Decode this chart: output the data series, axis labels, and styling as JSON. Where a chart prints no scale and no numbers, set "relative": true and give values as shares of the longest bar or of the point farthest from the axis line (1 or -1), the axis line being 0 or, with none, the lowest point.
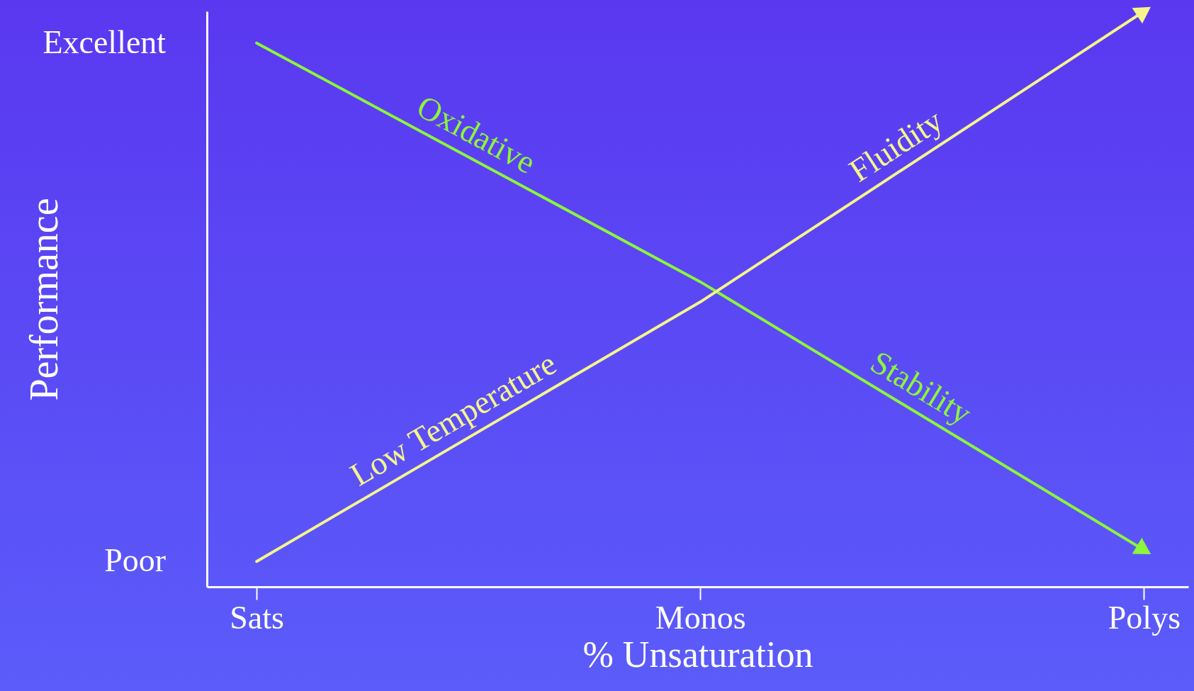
{
  "chart_data": {
    "type": "line",
    "relative": true,
    "xlabel": "% Unsaturation",
    "ylabel": "Performance",
    "categories": [
      "Sats",
      "Monos",
      "Polys"
    ],
    "series": [
      {
        "name": "Oxidative Stability",
        "color": "#8cf53c",
        "values": [
          0.945,
          0.53,
          0.064
        ]
      },
      {
        "name": "Low Temperature Fluidity",
        "color": "#f5f58c",
        "values": [
          0.044,
          0.495,
          1
        ]
      }
    ],
    "annotations": [
      {
        "text": "Excellent",
        "x": "Sats",
        "y": 0.945
      },
      {
        "text": "Poor",
        "x": "Sats",
        "y": 0.044
      }
    ],
    "marker": "none",
    "line_style": "solid"
  }
}
